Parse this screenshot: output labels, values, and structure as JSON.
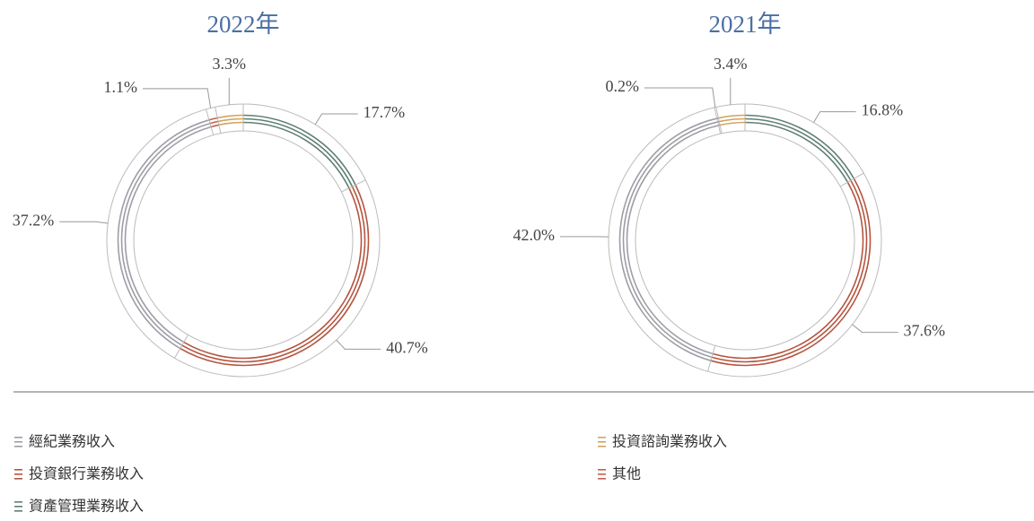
{
  "legend": {
    "labels": [
      "資產管理業務收入",
      "投資銀行業務收入",
      "經紀業務收入",
      "其他",
      "投資諮詢業務收入"
    ],
    "colors": [
      "#5f7f72",
      "#b5553f",
      "#9d9da6",
      "#c2604c",
      "#d1a35f"
    ]
  },
  "chart_data": [
    {
      "type": "pie",
      "title": "2022年",
      "values": [
        17.7,
        40.7,
        37.2,
        1.1,
        3.3
      ],
      "value_labels": [
        "17.7%",
        "40.7%",
        "37.2%",
        "1.1%",
        "3.3%"
      ]
    },
    {
      "type": "pie",
      "title": "2021年",
      "values": [
        16.8,
        37.6,
        42.0,
        0.2,
        3.4
      ],
      "value_labels": [
        "16.8%",
        "37.6%",
        "42.0%",
        "0.2%",
        "3.4%"
      ]
    }
  ]
}
